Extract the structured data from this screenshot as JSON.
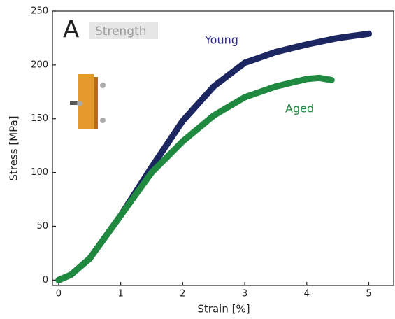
{
  "chart_data": {
    "type": "line",
    "panel_label": "A",
    "title": "Strength",
    "x_label": "Strain [%]",
    "y_label": "Stress [MPa]",
    "xlim": [
      -0.1,
      5.4
    ],
    "ylim": [
      -5,
      250
    ],
    "xticks": [
      0,
      1,
      2,
      3,
      4,
      5
    ],
    "yticks": [
      0,
      50,
      100,
      150,
      200,
      250
    ],
    "series": [
      {
        "name": "Young",
        "color": "#1c2660",
        "label_color": "#2b2b80",
        "x": [
          0,
          0.2,
          0.5,
          1,
          1.5,
          2,
          2.5,
          3,
          3.5,
          4,
          4.5,
          5
        ],
        "values": [
          0,
          5,
          20,
          60,
          105,
          148,
          180,
          202,
          212,
          219,
          225,
          229
        ]
      },
      {
        "name": "Aged",
        "color": "#1f8a3f",
        "label_color": "#1f8a3f",
        "x": [
          0,
          0.2,
          0.5,
          1,
          1.5,
          2,
          2.5,
          3,
          3.5,
          4,
          4.2,
          4.4
        ],
        "values": [
          0,
          5,
          20,
          60,
          100,
          129,
          153,
          170,
          180,
          187,
          188,
          186
        ]
      }
    ]
  }
}
